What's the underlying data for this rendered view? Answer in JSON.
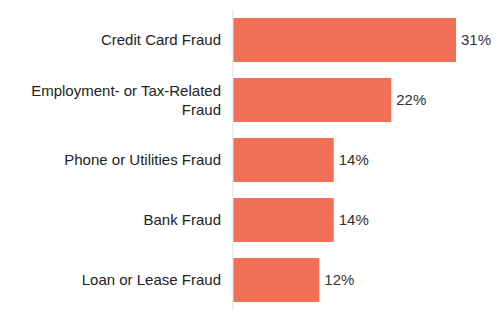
{
  "chart_data": {
    "type": "bar",
    "orientation": "horizontal",
    "categories": [
      "Credit Card Fraud",
      "Employment- or Tax-Related Fraud",
      "Phone or Utilities Fraud",
      "Bank Fraud",
      "Loan or Lease Fraud"
    ],
    "values": [
      31,
      22,
      14,
      14,
      12
    ],
    "value_labels": [
      "31%",
      "22%",
      "14%",
      "14%",
      "12%"
    ],
    "color": "#f07058",
    "data_labels": true,
    "tick_labels": "y",
    "grid": false
  }
}
